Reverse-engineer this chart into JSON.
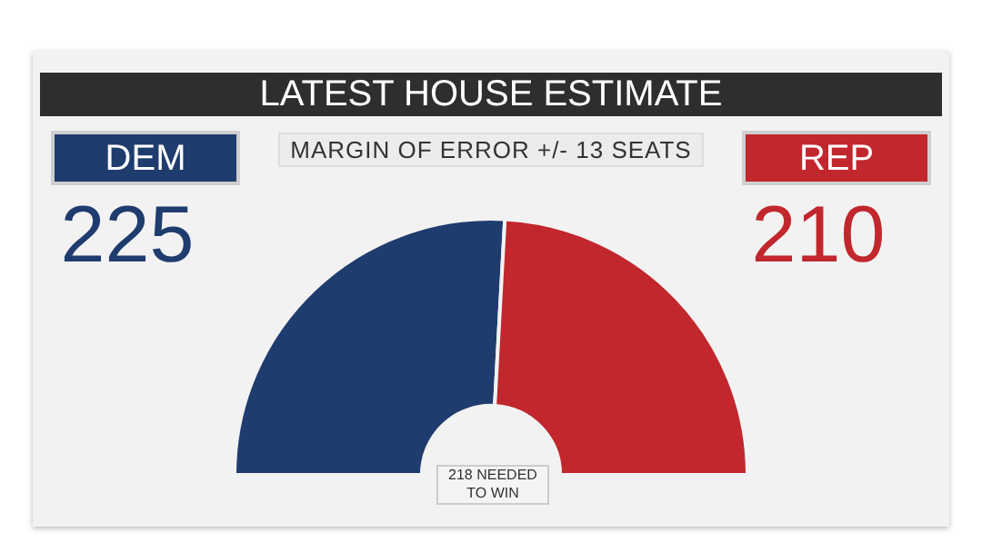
{
  "chart_data": {
    "type": "donut",
    "title": "LATEST HOUSE ESTIMATE",
    "subtitle": "MARGIN OF ERROR +/- 13 SEATS",
    "categories": [
      "DEM",
      "REP"
    ],
    "values": [
      225,
      210
    ],
    "colors": [
      "#1f3c6e",
      "#c1272d"
    ],
    "data_labels": true,
    "annotations": [
      "218 NEEDED TO WIN"
    ]
  }
}
